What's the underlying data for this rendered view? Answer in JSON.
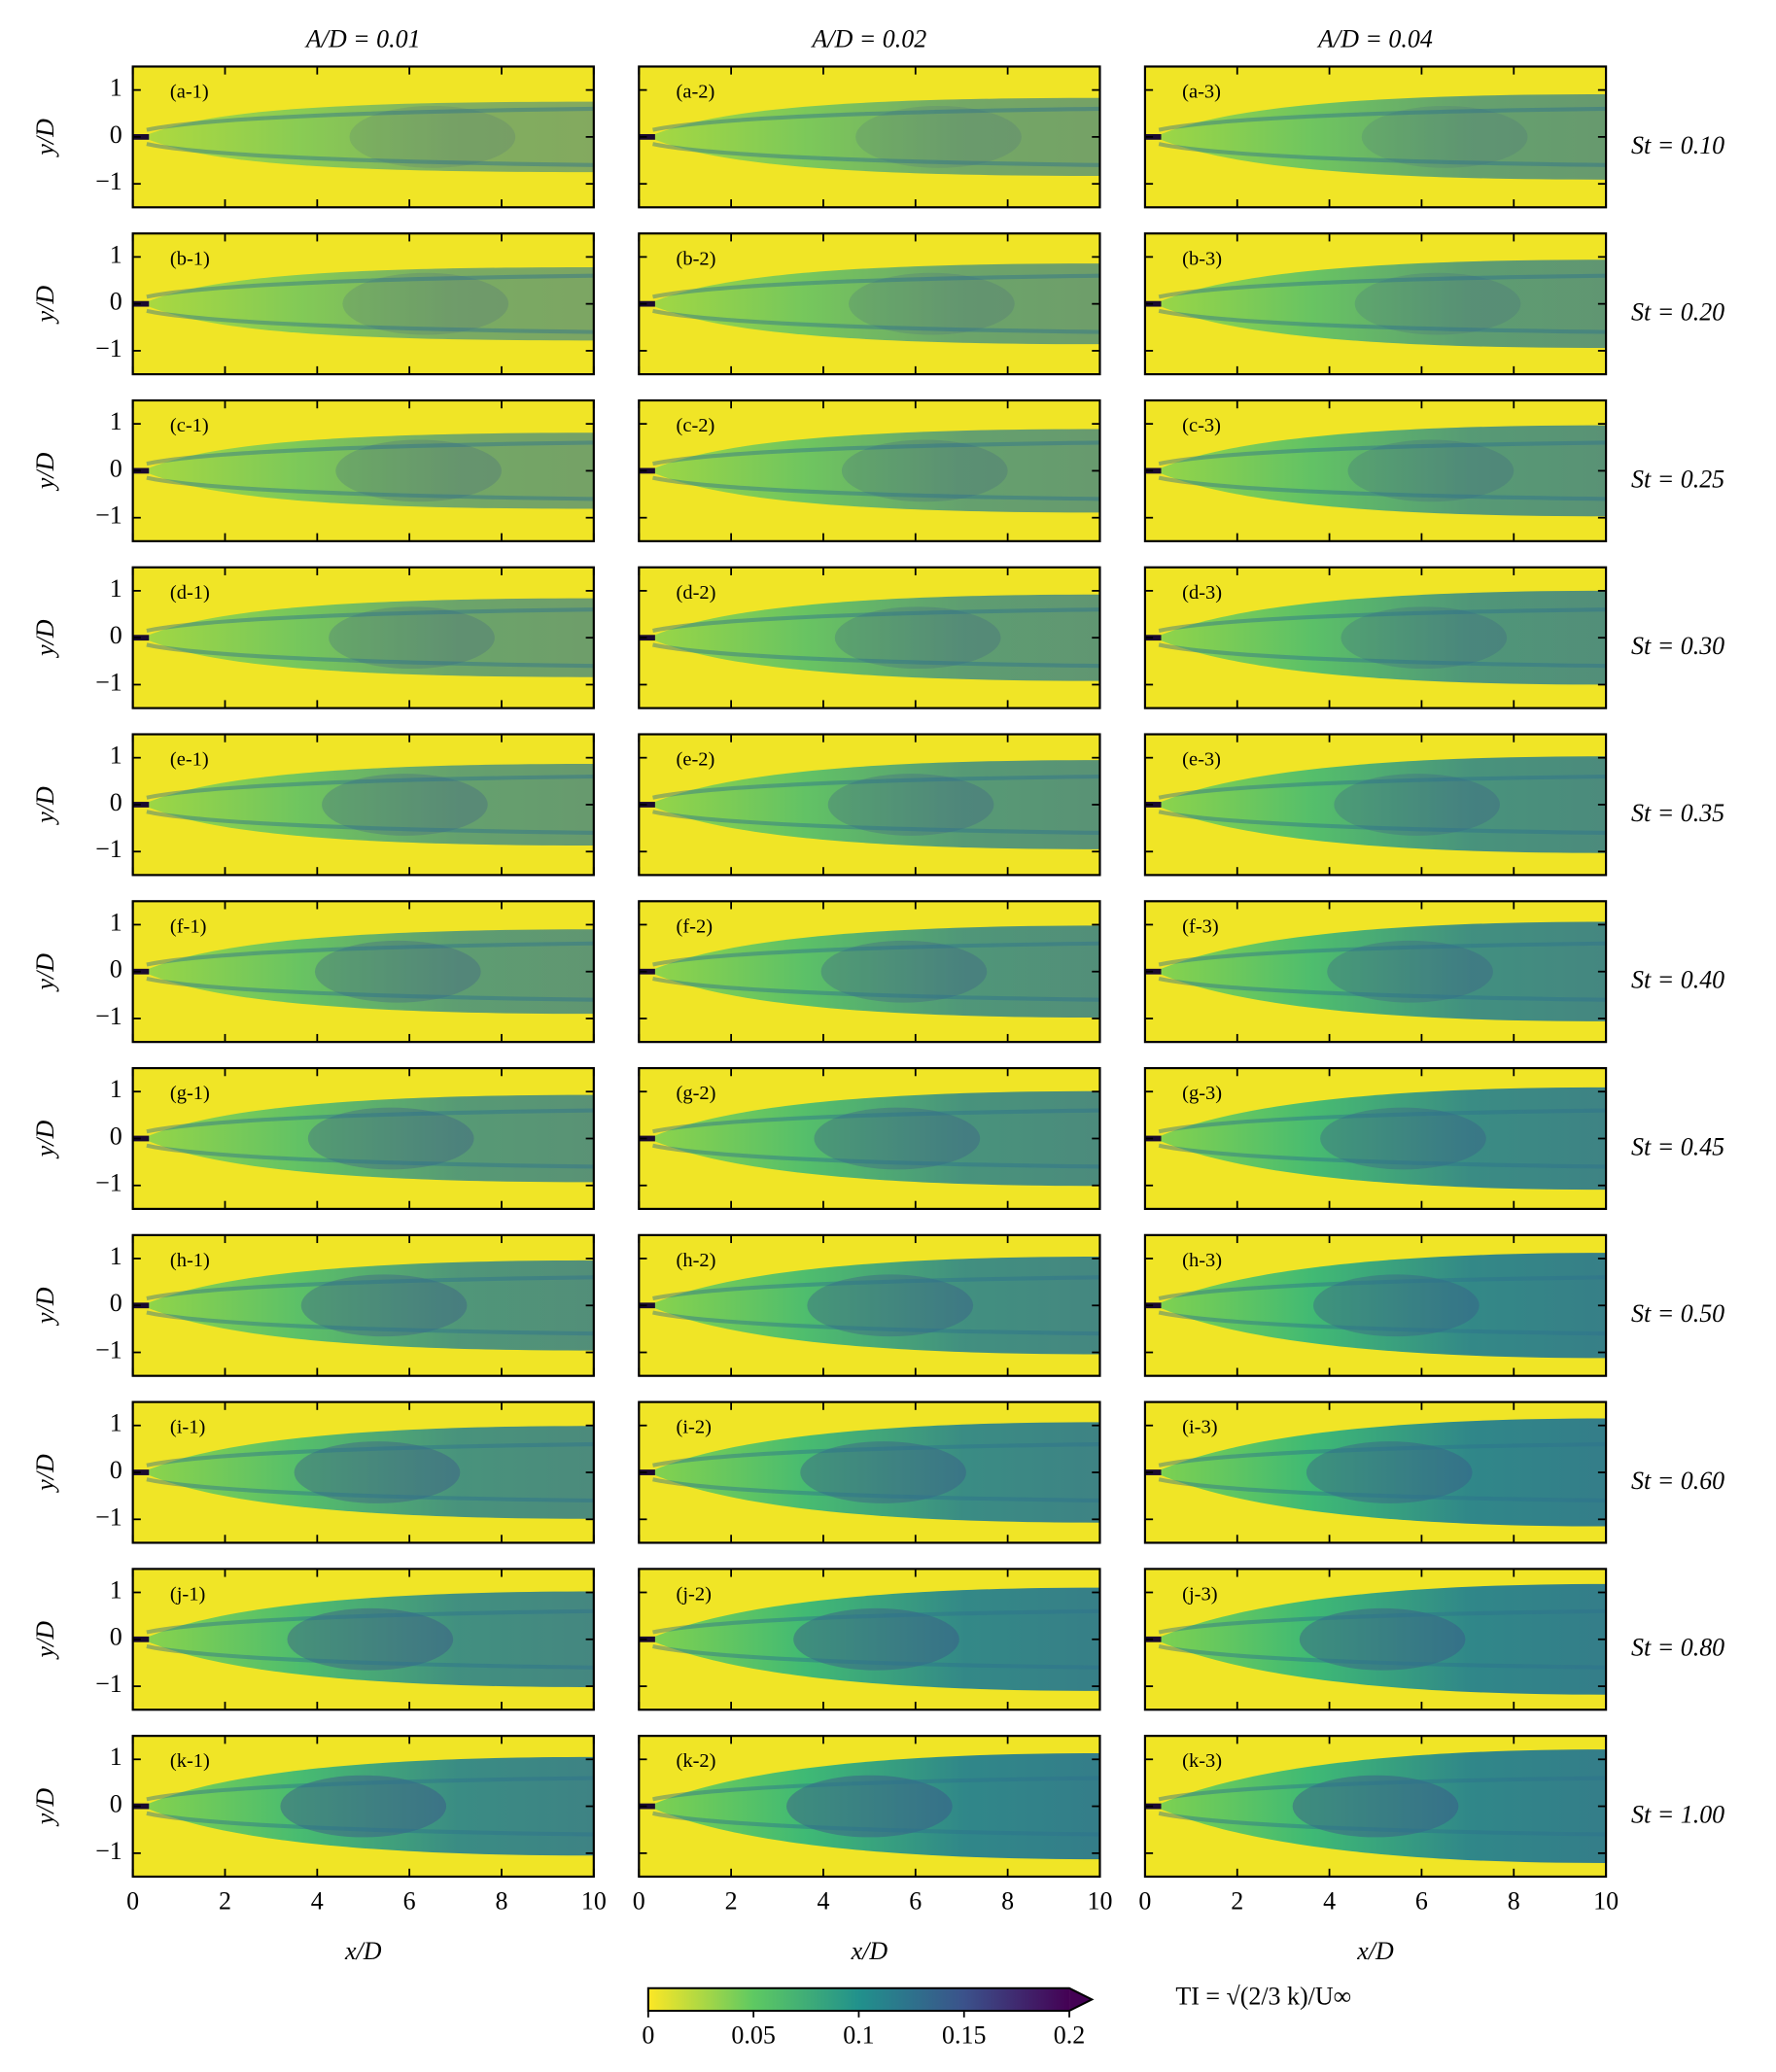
{
  "chart_data": {
    "type": "heatmap",
    "column_titles": [
      "A/D = 0.01",
      "A/D = 0.02",
      "A/D = 0.04"
    ],
    "row_labels": [
      "St = 0.10",
      "St = 0.20",
      "St = 0.25",
      "St = 0.30",
      "St = 0.35",
      "St = 0.40",
      "St = 0.45",
      "St = 0.50",
      "St = 0.60",
      "St = 0.80",
      "St = 1.00"
    ],
    "panel_labels": [
      [
        "(a-1)",
        "(a-2)",
        "(a-3)"
      ],
      [
        "(b-1)",
        "(b-2)",
        "(b-3)"
      ],
      [
        "(c-1)",
        "(c-2)",
        "(c-3)"
      ],
      [
        "(d-1)",
        "(d-2)",
        "(d-3)"
      ],
      [
        "(e-1)",
        "(e-2)",
        "(e-3)"
      ],
      [
        "(f-1)",
        "(f-2)",
        "(f-3)"
      ],
      [
        "(g-1)",
        "(g-2)",
        "(g-3)"
      ],
      [
        "(h-1)",
        "(h-2)",
        "(h-3)"
      ],
      [
        "(i-1)",
        "(i-2)",
        "(i-3)"
      ],
      [
        "(j-1)",
        "(j-2)",
        "(j-3)"
      ],
      [
        "(k-1)",
        "(k-2)",
        "(k-3)"
      ]
    ],
    "xlabel": "x/D",
    "ylabel": "y/D",
    "xlim": [
      0,
      10
    ],
    "xticks": [
      0,
      2,
      4,
      6,
      8,
      10
    ],
    "ylim": [
      -1.5,
      1.5
    ],
    "yticks": [
      {
        "value": -1,
        "label": "−1"
      },
      0,
      1
    ],
    "colorbar": {
      "label": "TI = √(2/3 k)/U∞",
      "colormap": "viridis_r",
      "extend": "max",
      "lim": [
        0,
        0.2
      ],
      "ticks": [
        0,
        0.05,
        0.1,
        0.15,
        0.2
      ]
    }
  }
}
